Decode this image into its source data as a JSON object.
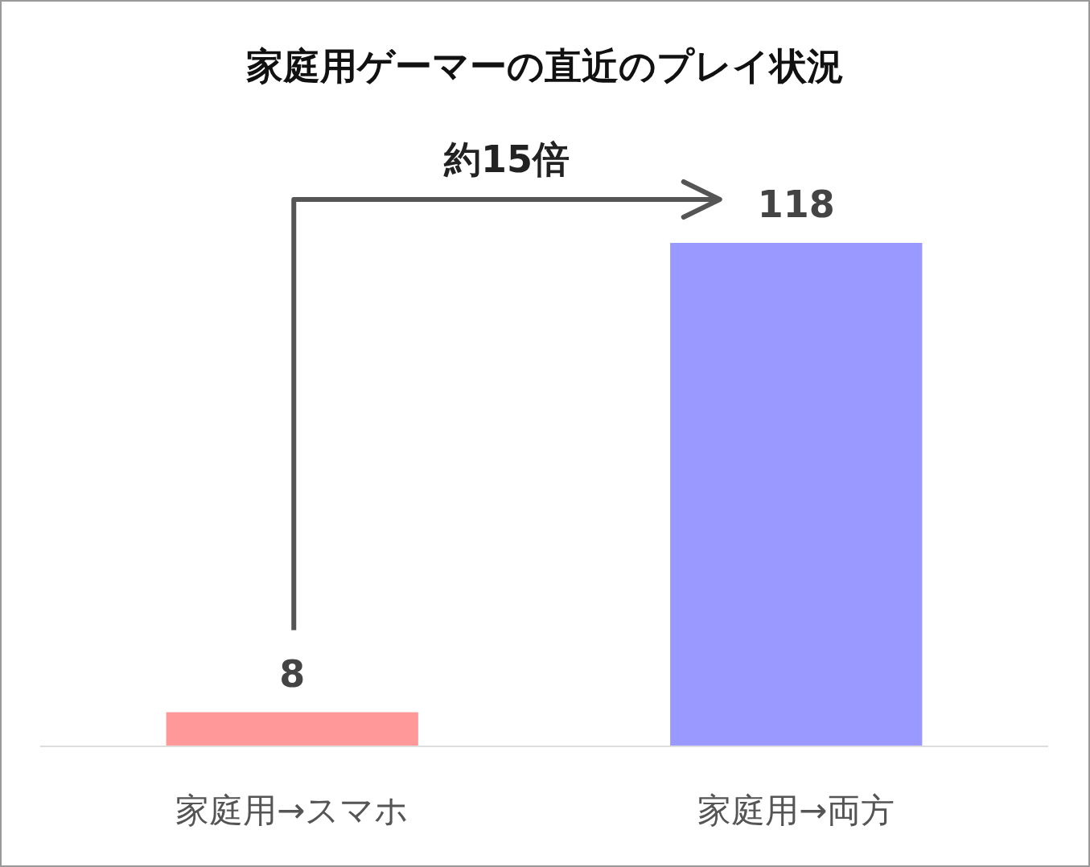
{
  "chart_data": {
    "type": "bar",
    "title": "家庭用ゲーマーの直近のプレイ状況",
    "categories": [
      "家庭用→スマホ",
      "家庭用→両方"
    ],
    "values": [
      8,
      118
    ],
    "colors": [
      "#ff9999",
      "#9999ff"
    ],
    "data_labels": true,
    "annotations": [
      "約15倍"
    ]
  }
}
